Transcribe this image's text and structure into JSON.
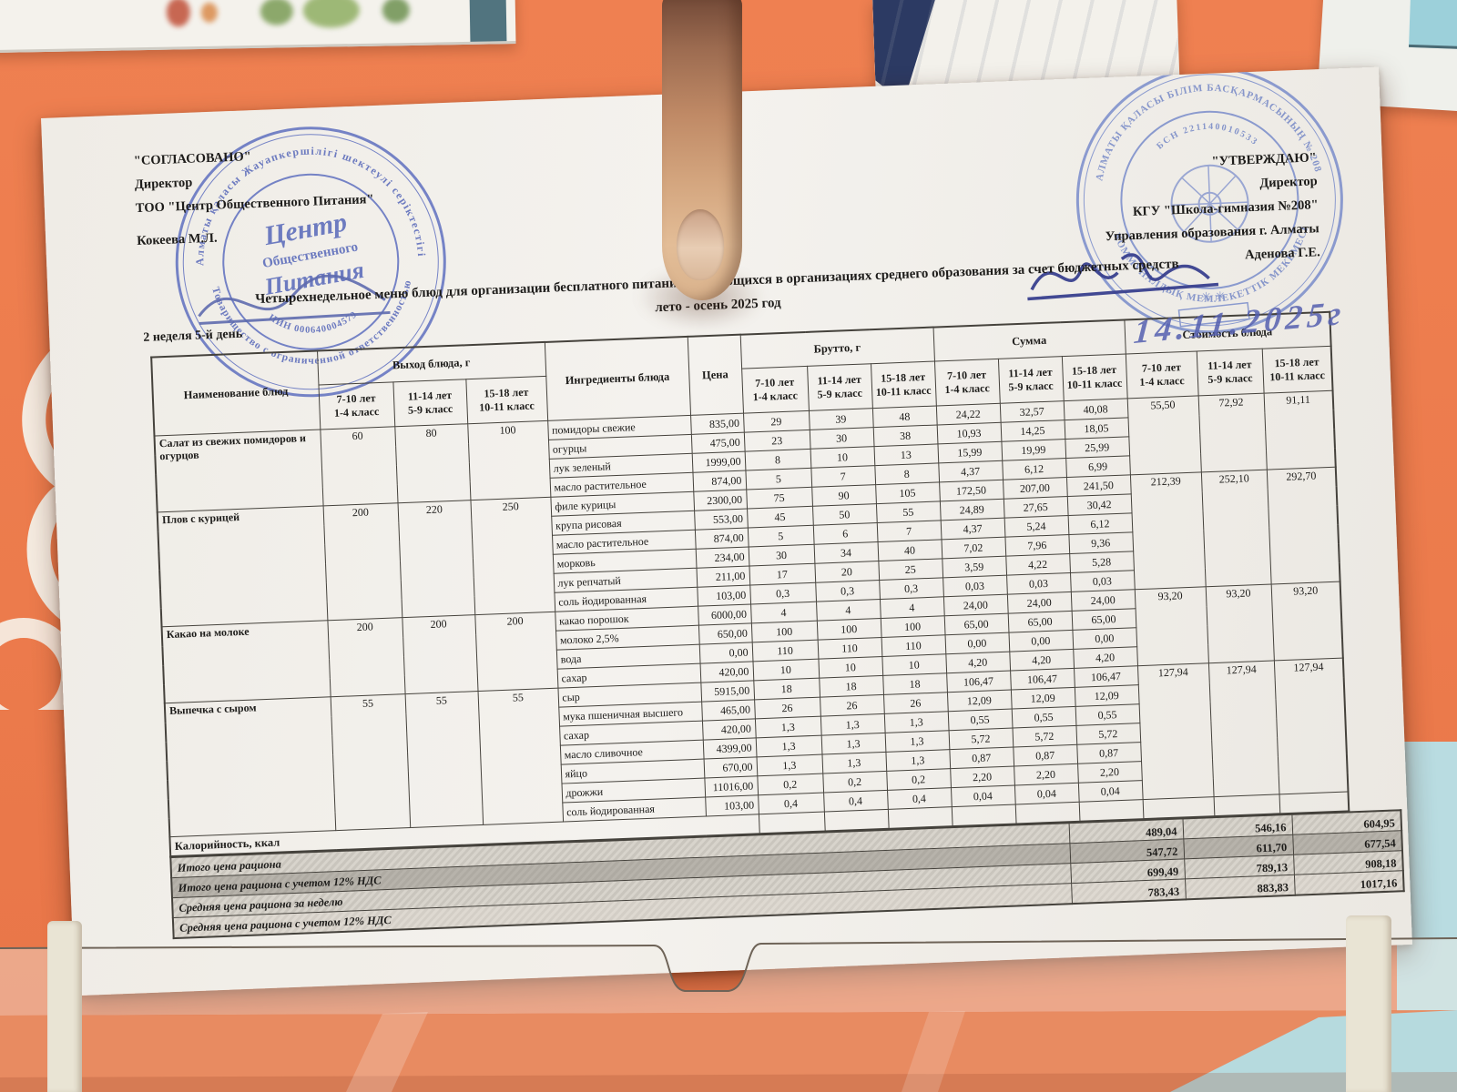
{
  "approval": {
    "left": {
      "line1": "\"СОГЛАСОВАНО\"",
      "line2": "Директор",
      "line3": "ТОО \"Центр Общественного Питания\"",
      "line4": "Кокеева М.Л."
    },
    "right": {
      "line1": "\"УТВЕРЖДАЮ\"",
      "line2": "Директор",
      "line3": "КГУ  \"Школа-гимназия №208\"",
      "line4": "Управления образования г. Алматы",
      "line5": "Аденова Г.Е."
    }
  },
  "title": {
    "line1": "Четырехнедельное меню блюд для организации бесплатного питания обучающихся в организациях среднего образования за счет бюджетных средств",
    "line2": "лето - осень 2025 год"
  },
  "week_day": "2 неделя 5-й день",
  "handwritten_date": "14.11.2025г",
  "stamps": {
    "left": {
      "ring_top": "Алматы қаласы Жауапкершілігі шектеулі серіктестігі",
      "ring_bottom": "Товарищество с ограниченной ответственностью",
      "inner_arc": "ИИН 000640004579",
      "center_line1": "Центр",
      "center_line2": "Общественного",
      "center_line3": "Питания"
    },
    "right": {
      "ring_top": "АЛМАТЫ ҚАЛАСЫ БІЛІМ БАСҚАРМАСЫНЫҢ № 208",
      "ring_bottom": "КОММУНАЛДЫҚ МЕМЛЕКЕТТІК МЕКЕМЕСІ",
      "inner_arc": "БСН 221140010533"
    }
  },
  "table": {
    "header": {
      "name": "Наименование блюд",
      "yield_group": "Выход блюда, г",
      "ingredients": "Ингредиенты блюда",
      "price": "Цена",
      "brutto_group": "Брутто, г",
      "summa_group": "Сумма",
      "cost_group": "Стоимость блюда"
    },
    "age_groups": [
      {
        "l1": "7-10 лет",
        "l2": "1-4 класс"
      },
      {
        "l1": "11-14 лет",
        "l2": "5-9 класс"
      },
      {
        "l1": "15-18 лет",
        "l2": "10-11 класс"
      }
    ],
    "dishes": [
      {
        "name": "Салат из свежих помидоров и огурцов",
        "yields": [
          "60",
          "80",
          "100"
        ],
        "cost": [
          "55,50",
          "72,92",
          "91,11"
        ],
        "ingredients": [
          {
            "name": "помидоры свежие",
            "price": "835,00",
            "brutto": [
              "29",
              "39",
              "48"
            ],
            "summa": [
              "24,22",
              "32,57",
              "40,08"
            ]
          },
          {
            "name": "огурцы",
            "price": "475,00",
            "brutto": [
              "23",
              "30",
              "38"
            ],
            "summa": [
              "10,93",
              "14,25",
              "18,05"
            ]
          },
          {
            "name": "лук зеленый",
            "price": "1999,00",
            "brutto": [
              "8",
              "10",
              "13"
            ],
            "summa": [
              "15,99",
              "19,99",
              "25,99"
            ]
          },
          {
            "name": "масло растительное",
            "price": "874,00",
            "brutto": [
              "5",
              "7",
              "8"
            ],
            "summa": [
              "4,37",
              "6,12",
              "6,99"
            ]
          }
        ]
      },
      {
        "name": "Плов с курицей",
        "yields": [
          "200",
          "220",
          "250"
        ],
        "cost": [
          "212,39",
          "252,10",
          "292,70"
        ],
        "ingredients": [
          {
            "name": "филе курицы",
            "price": "2300,00",
            "brutto": [
              "75",
              "90",
              "105"
            ],
            "summa": [
              "172,50",
              "207,00",
              "241,50"
            ]
          },
          {
            "name": "крупа рисовая",
            "price": "553,00",
            "brutto": [
              "45",
              "50",
              "55"
            ],
            "summa": [
              "24,89",
              "27,65",
              "30,42"
            ]
          },
          {
            "name": "масло растительное",
            "price": "874,00",
            "brutto": [
              "5",
              "6",
              "7"
            ],
            "summa": [
              "4,37",
              "5,24",
              "6,12"
            ]
          },
          {
            "name": "морковь",
            "price": "234,00",
            "brutto": [
              "30",
              "34",
              "40"
            ],
            "summa": [
              "7,02",
              "7,96",
              "9,36"
            ]
          },
          {
            "name": "лук репчатый",
            "price": "211,00",
            "brutto": [
              "17",
              "20",
              "25"
            ],
            "summa": [
              "3,59",
              "4,22",
              "5,28"
            ]
          },
          {
            "name": "соль йодированная",
            "price": "103,00",
            "brutto": [
              "0,3",
              "0,3",
              "0,3"
            ],
            "summa": [
              "0,03",
              "0,03",
              "0,03"
            ]
          }
        ]
      },
      {
        "name": "Какао на молоке",
        "yields": [
          "200",
          "200",
          "200"
        ],
        "cost": [
          "93,20",
          "93,20",
          "93,20"
        ],
        "ingredients": [
          {
            "name": "какао порошок",
            "price": "6000,00",
            "brutto": [
              "4",
              "4",
              "4"
            ],
            "summa": [
              "24,00",
              "24,00",
              "24,00"
            ]
          },
          {
            "name": "молоко 2,5%",
            "price": "650,00",
            "brutto": [
              "100",
              "100",
              "100"
            ],
            "summa": [
              "65,00",
              "65,00",
              "65,00"
            ]
          },
          {
            "name": "вода",
            "price": "0,00",
            "brutto": [
              "110",
              "110",
              "110"
            ],
            "summa": [
              "0,00",
              "0,00",
              "0,00"
            ]
          },
          {
            "name": "сахар",
            "price": "420,00",
            "brutto": [
              "10",
              "10",
              "10"
            ],
            "summa": [
              "4,20",
              "4,20",
              "4,20"
            ]
          }
        ]
      },
      {
        "name": "Выпечка с сыром",
        "yields": [
          "55",
          "55",
          "55"
        ],
        "cost": [
          "127,94",
          "127,94",
          "127,94"
        ],
        "ingredients": [
          {
            "name": "сыр",
            "price": "5915,00",
            "brutto": [
              "18",
              "18",
              "18"
            ],
            "summa": [
              "106,47",
              "106,47",
              "106,47"
            ]
          },
          {
            "name": "мука пшеничная высшего",
            "price": "465,00",
            "brutto": [
              "26",
              "26",
              "26"
            ],
            "summa": [
              "12,09",
              "12,09",
              "12,09"
            ]
          },
          {
            "name": "сахар",
            "price": "420,00",
            "brutto": [
              "1,3",
              "1,3",
              "1,3"
            ],
            "summa": [
              "0,55",
              "0,55",
              "0,55"
            ]
          },
          {
            "name": "масло сливочное",
            "price": "4399,00",
            "brutto": [
              "1,3",
              "1,3",
              "1,3"
            ],
            "summa": [
              "5,72",
              "5,72",
              "5,72"
            ]
          },
          {
            "name": "яйцо",
            "price": "670,00",
            "brutto": [
              "1,3",
              "1,3",
              "1,3"
            ],
            "summa": [
              "0,87",
              "0,87",
              "0,87"
            ]
          },
          {
            "name": "дрожжи",
            "price": "11016,00",
            "brutto": [
              "0,2",
              "0,2",
              "0,2"
            ],
            "summa": [
              "2,20",
              "2,20",
              "2,20"
            ]
          },
          {
            "name": "соль йодированная",
            "price": "103,00",
            "brutto": [
              "0,4",
              "0,4",
              "0,4"
            ],
            "summa": [
              "0,04",
              "0,04",
              "0,04"
            ]
          }
        ]
      }
    ],
    "kcal_row_label": "Калорийность, ккал",
    "summary": [
      {
        "label": "Итого цена рациона",
        "values": [
          "489,04",
          "546,16",
          "604,95"
        ],
        "shade": "hatch",
        "italic": true
      },
      {
        "label": "Итого цена рациона с учетом 12% НДС",
        "values": [
          "547,72",
          "611,70",
          "677,54"
        ],
        "shade": "dark",
        "italic": true
      },
      {
        "label": "Средняя цена рациона за неделю",
        "values": [
          "699,49",
          "789,13",
          "908,18"
        ],
        "shade": "hatch",
        "italic": true
      },
      {
        "label": "Средняя цена рациона с учетом 12% НДС",
        "values": [
          "783,43",
          "883,83",
          "1017,16"
        ],
        "shade": "light",
        "italic": true
      }
    ]
  }
}
